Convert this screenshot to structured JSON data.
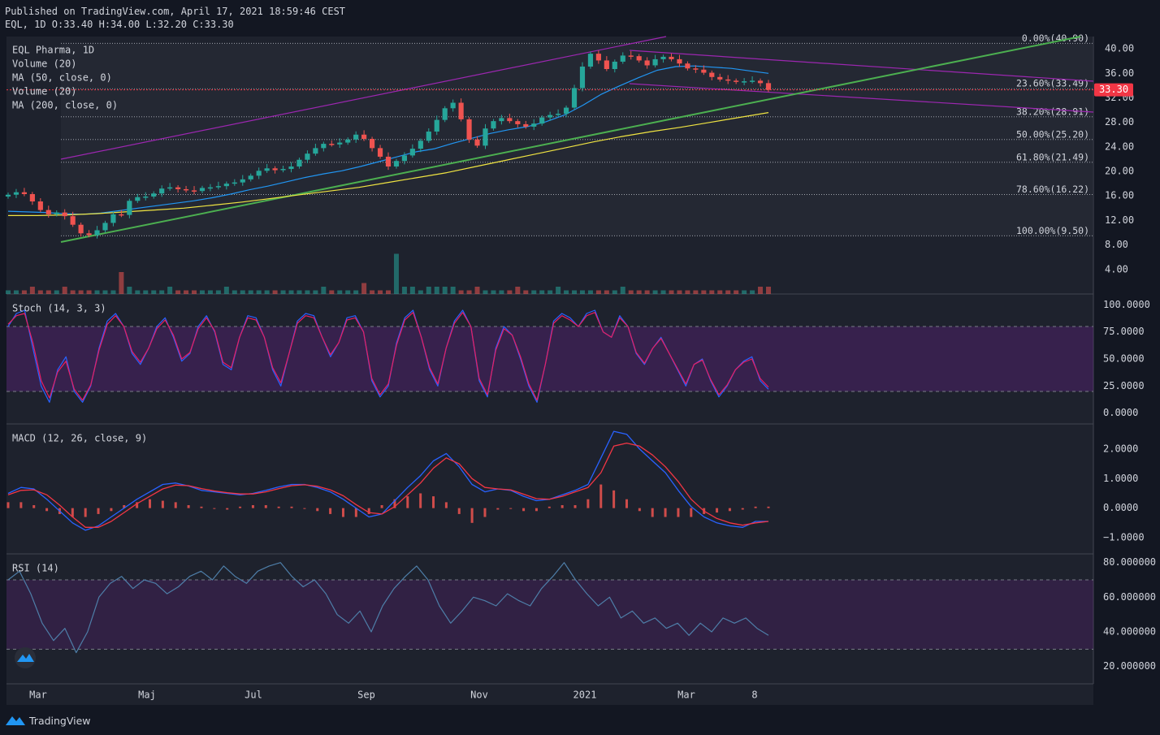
{
  "header": {
    "published": "Published on TradingView.com, April 17, 2021 18:59:46 CEST",
    "ohlc": "EQL, 1D O:33.40 H:34.00 L:32.20 C:33.30"
  },
  "footer": {
    "brand": "TradingView"
  },
  "colors": {
    "background": "#131722",
    "pane": "#1e222d",
    "up": "#26a69a",
    "down": "#ef5350",
    "ma50": "#2196f3",
    "ma200": "#f0e442",
    "trendline": "#4caf50",
    "channel": "#9c27b0",
    "stoch_k": "#2962ff",
    "stoch_d": "#e91e63",
    "macd": "#2962ff",
    "signal": "#f23645",
    "hist": "#ef5350",
    "rsi": "#4e7ea8",
    "price_tag": "#f23645"
  },
  "chart_data": [
    {
      "type": "candlestick",
      "title": "EQL Pharma, 1D",
      "legend": [
        "EQL Pharma, 1D",
        "Volume (20)",
        "MA (50, close, 0)",
        "Volume (20)",
        "MA (200, close, 0)"
      ],
      "ylim": [
        0,
        42
      ],
      "yticks": [
        "40.00",
        "36.00",
        "32.00",
        "28.00",
        "24.00",
        "20.00",
        "16.00",
        "12.00",
        "8.00",
        "4.00"
      ],
      "last_price": "33.30",
      "x_labels": [
        "Mar",
        "Maj",
        "Jul",
        "Sep",
        "Nov",
        "2021",
        "Mar",
        "8"
      ],
      "close": [
        16.2,
        16.6,
        16.3,
        15.1,
        13.7,
        13.0,
        13.3,
        12.7,
        11.3,
        9.9,
        9.6,
        10.4,
        11.6,
        13.0,
        12.9,
        15.2,
        15.8,
        15.9,
        16.4,
        17.2,
        17.4,
        17.1,
        16.9,
        16.8,
        17.3,
        17.4,
        17.6,
        18.0,
        18.2,
        18.7,
        19.3,
        20.1,
        20.5,
        20.2,
        20.4,
        20.8,
        21.9,
        22.9,
        23.8,
        24.5,
        24.4,
        24.7,
        25.2,
        26.0,
        25.3,
        23.8,
        22.4,
        20.8,
        21.7,
        22.6,
        23.7,
        25.0,
        26.5,
        28.4,
        30.3,
        31.2,
        28.5,
        25.2,
        24.2,
        27.0,
        28.2,
        28.7,
        28.2,
        27.7,
        27.3,
        27.8,
        28.8,
        29.2,
        29.4,
        30.4,
        33.6,
        37.1,
        39.2,
        38.1,
        36.7,
        37.9,
        38.9,
        38.8,
        38.1,
        37.3,
        38.3,
        38.7,
        38.3,
        37.6,
        36.8,
        36.6,
        36.1,
        35.4,
        35.0,
        34.8,
        34.6,
        34.7,
        34.8,
        34.4,
        33.3
      ],
      "volume_scale": [
        1,
        1,
        1,
        2,
        1,
        1,
        1,
        2,
        1,
        1,
        1,
        1,
        1,
        1,
        6,
        2,
        1,
        1,
        1,
        1,
        2,
        1,
        1,
        1,
        1,
        1,
        1,
        2,
        1,
        1,
        1,
        1,
        1,
        1,
        1,
        1,
        1,
        1,
        1,
        2,
        1,
        1,
        1,
        1,
        3,
        1,
        1,
        1,
        11,
        2,
        2,
        1,
        2,
        2,
        2,
        2,
        1,
        1,
        2,
        1,
        1,
        1,
        1,
        2,
        1,
        1,
        1,
        1,
        2,
        1,
        1,
        1,
        1,
        1,
        1,
        1,
        2,
        1,
        1,
        1,
        1,
        1,
        1,
        1,
        1,
        1,
        1,
        1,
        1,
        1,
        1,
        1,
        1,
        2,
        2
      ],
      "ma50": [
        13.5,
        13.4,
        13.3,
        13.1,
        13.0,
        13.2,
        13.6,
        14.0,
        14.4,
        14.8,
        15.2,
        15.7,
        16.3,
        17.0,
        17.6,
        18.3,
        19.0,
        19.6,
        20.1,
        20.8,
        21.6,
        22.4,
        23.2,
        23.7,
        24.6,
        25.4,
        26.2,
        26.8,
        27.3,
        28.1,
        29.2,
        30.8,
        32.6,
        34.0,
        35.3,
        36.5,
        37.1,
        37.2,
        37.0,
        36.8,
        36.4,
        36.0
      ],
      "ma200": [
        12.8,
        12.8,
        12.9,
        13.1,
        13.4,
        13.7,
        14.0,
        14.5,
        15.0,
        15.6,
        16.2,
        16.8,
        17.4,
        18.2,
        19.0,
        19.8,
        20.8,
        21.8,
        22.8,
        23.8,
        24.8,
        25.7,
        26.5,
        27.2,
        28.0,
        28.8,
        29.6
      ],
      "fib_levels": [
        {
          "label": "0.00%(40.90)",
          "value": 40.9
        },
        {
          "label": "23.60%(33.49)",
          "value": 33.49
        },
        {
          "label": "38.20%(28.91)",
          "value": 28.91
        },
        {
          "label": "50.00%(25.20)",
          "value": 25.2
        },
        {
          "label": "61.80%(21.49)",
          "value": 21.49
        },
        {
          "label": "78.60%(16.22)",
          "value": 16.22
        },
        {
          "label": "100.00%(9.50)",
          "value": 9.5
        }
      ]
    },
    {
      "type": "line",
      "title": "Stoch (14, 3, 3)",
      "ylim": [
        -10,
        110
      ],
      "yticks": [
        "100.0000",
        "75.0000",
        "50.0000",
        "25.0000",
        "0.0000"
      ],
      "bands": [
        20,
        80
      ],
      "series": [
        {
          "values": [
            80,
            92,
            95,
            60,
            25,
            10,
            40,
            52,
            20,
            10,
            25,
            60,
            85,
            92,
            80,
            55,
            45,
            60,
            80,
            88,
            70,
            48,
            55,
            80,
            90,
            75,
            45,
            40,
            70,
            90,
            88,
            70,
            40,
            25,
            55,
            85,
            92,
            90,
            70,
            52,
            65,
            88,
            90,
            75,
            30,
            15,
            25,
            65,
            88,
            95,
            70,
            40,
            25,
            60,
            85,
            95,
            80,
            30,
            15,
            60,
            80,
            72,
            50,
            25,
            10,
            45,
            85,
            92,
            88,
            80,
            92,
            95,
            75,
            70,
            90,
            80,
            55,
            45,
            60,
            70,
            55,
            40,
            25,
            45,
            50,
            30,
            15,
            25,
            40,
            48,
            52,
            30,
            22
          ]
        },
        {
          "values": [
            82,
            90,
            92,
            65,
            30,
            14,
            38,
            48,
            22,
            12,
            26,
            58,
            82,
            90,
            80,
            57,
            47,
            60,
            78,
            86,
            72,
            50,
            56,
            78,
            88,
            76,
            47,
            42,
            70,
            88,
            86,
            70,
            42,
            28,
            55,
            83,
            90,
            88,
            70,
            54,
            65,
            86,
            88,
            75,
            32,
            17,
            27,
            63,
            86,
            93,
            70,
            42,
            27,
            60,
            83,
            93,
            80,
            32,
            17,
            58,
            78,
            72,
            52,
            27,
            12,
            45,
            83,
            90,
            86,
            80,
            90,
            93,
            75,
            70,
            88,
            80,
            56,
            46,
            60,
            69,
            55,
            41,
            27,
            45,
            49,
            31,
            17,
            26,
            40,
            47,
            50,
            32,
            24
          ]
        }
      ]
    },
    {
      "type": "line",
      "title": "MACD (12, 26, close, 9)",
      "ylim": [
        -1.55,
        2.85
      ],
      "yticks": [
        "2.0000",
        "1.0000",
        "0.0000",
        "−1.0000"
      ],
      "series": [
        {
          "values": [
            0.5,
            0.7,
            0.65,
            0.3,
            -0.1,
            -0.5,
            -0.75,
            -0.6,
            -0.3,
            0.0,
            0.3,
            0.55,
            0.8,
            0.85,
            0.75,
            0.6,
            0.55,
            0.5,
            0.45,
            0.5,
            0.6,
            0.72,
            0.8,
            0.8,
            0.7,
            0.55,
            0.3,
            0.0,
            -0.3,
            -0.2,
            0.25,
            0.7,
            1.1,
            1.6,
            1.85,
            1.4,
            0.8,
            0.55,
            0.65,
            0.6,
            0.4,
            0.25,
            0.3,
            0.45,
            0.6,
            0.8,
            1.7,
            2.6,
            2.5,
            2.0,
            1.6,
            1.2,
            0.6,
            0.05,
            -0.3,
            -0.5,
            -0.6,
            -0.65,
            -0.45,
            -0.45
          ]
        },
        {
          "values": [
            0.45,
            0.6,
            0.62,
            0.45,
            0.1,
            -0.3,
            -0.65,
            -0.65,
            -0.45,
            -0.15,
            0.15,
            0.4,
            0.65,
            0.78,
            0.76,
            0.66,
            0.58,
            0.52,
            0.48,
            0.48,
            0.55,
            0.66,
            0.76,
            0.79,
            0.74,
            0.62,
            0.42,
            0.12,
            -0.15,
            -0.2,
            0.05,
            0.45,
            0.85,
            1.35,
            1.7,
            1.5,
            1.0,
            0.7,
            0.65,
            0.62,
            0.47,
            0.32,
            0.3,
            0.4,
            0.55,
            0.7,
            1.2,
            2.1,
            2.2,
            2.1,
            1.8,
            1.4,
            0.9,
            0.3,
            -0.1,
            -0.35,
            -0.5,
            -0.58,
            -0.5,
            -0.45
          ]
        },
        {
          "values": [
            0.2,
            0.2,
            0.1,
            -0.1,
            -0.2,
            -0.3,
            -0.3,
            -0.2,
            -0.1,
            0.1,
            0.2,
            0.3,
            0.25,
            0.2,
            0.1,
            0.05,
            0.0,
            -0.05,
            0.05,
            0.1,
            0.1,
            0.05,
            0.05,
            0.0,
            -0.1,
            -0.2,
            -0.3,
            -0.3,
            -0.2,
            0.1,
            0.3,
            0.4,
            0.5,
            0.4,
            0.2,
            -0.2,
            -0.5,
            -0.3,
            -0.05,
            0.0,
            -0.1,
            -0.1,
            0.05,
            0.1,
            0.1,
            0.3,
            0.8,
            0.6,
            0.3,
            -0.1,
            -0.3,
            -0.3,
            -0.3,
            -0.3,
            -0.2,
            -0.15,
            -0.1,
            -0.05,
            0.05,
            0.05
          ]
        }
      ]
    },
    {
      "type": "line",
      "title": "RSI (14)",
      "ylim": [
        10,
        85
      ],
      "yticks": [
        "80.000000",
        "60.000000",
        "40.000000",
        "20.000000"
      ],
      "bands": [
        30,
        70
      ],
      "series": [
        {
          "values": [
            70,
            75,
            62,
            45,
            35,
            42,
            28,
            40,
            60,
            68,
            72,
            65,
            70,
            68,
            62,
            66,
            72,
            75,
            70,
            78,
            72,
            68,
            75,
            78,
            80,
            72,
            66,
            70,
            62,
            50,
            45,
            52,
            40,
            55,
            65,
            72,
            78,
            70,
            55,
            45,
            52,
            60,
            58,
            55,
            62,
            58,
            55,
            65,
            72,
            80,
            70,
            62,
            55,
            60,
            48,
            52,
            45,
            48,
            42,
            45,
            38,
            45,
            40,
            48,
            45,
            48,
            42,
            38
          ]
        }
      ]
    }
  ]
}
